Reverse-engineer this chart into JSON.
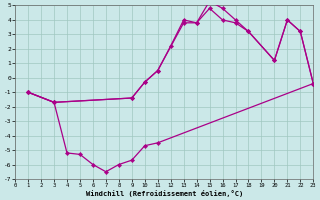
{
  "xlabel": "Windchill (Refroidissement éolien,°C)",
  "bg_color": "#cbe8e8",
  "grid_color": "#a0c8c0",
  "line_color": "#aa0088",
  "xlim": [
    0,
    23
  ],
  "ylim": [
    -7,
    5
  ],
  "xticks": [
    0,
    1,
    2,
    3,
    4,
    5,
    6,
    7,
    8,
    9,
    10,
    11,
    12,
    13,
    14,
    15,
    16,
    17,
    18,
    19,
    20,
    21,
    22,
    23
  ],
  "yticks": [
    -7,
    -6,
    -5,
    -4,
    -3,
    -2,
    -1,
    0,
    1,
    2,
    3,
    4,
    5
  ],
  "line_bottom_x": [
    1,
    3,
    4,
    5,
    6,
    7,
    8,
    9,
    10,
    11,
    23
  ],
  "line_bottom_y": [
    -1.0,
    -1.7,
    -5.2,
    -5.3,
    -6.0,
    -6.5,
    -6.0,
    -5.7,
    -4.7,
    -4.5,
    -0.4
  ],
  "line_mid_x": [
    1,
    3,
    9,
    10,
    11,
    12,
    13,
    14,
    15,
    16,
    17,
    18,
    20,
    21,
    22,
    23
  ],
  "line_mid_y": [
    -1.0,
    -1.7,
    -1.4,
    -0.3,
    0.5,
    2.2,
    4.0,
    3.8,
    4.8,
    4.0,
    3.8,
    3.2,
    1.2,
    4.0,
    3.2,
    -0.4
  ],
  "line_top_x": [
    1,
    3,
    9,
    10,
    11,
    13,
    14,
    15,
    16,
    17,
    18,
    20,
    21,
    22,
    23
  ],
  "line_top_y": [
    -1.0,
    -1.7,
    -1.4,
    -0.3,
    0.5,
    3.8,
    3.8,
    5.3,
    4.8,
    4.0,
    3.2,
    1.2,
    4.0,
    3.2,
    -0.4
  ]
}
